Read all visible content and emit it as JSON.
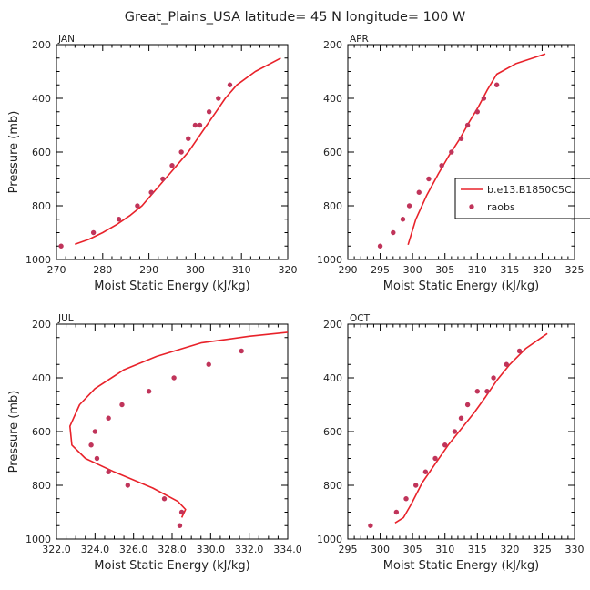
{
  "title": "Great_Plains_USA  latitude= 45 N longitude= 100 W",
  "colors": {
    "model": "#e8222a",
    "obs": "#c0345a",
    "axis": "#000000"
  },
  "legend": {
    "model_label": "b.e13.B1850C5C",
    "obs_label": "raobs"
  },
  "chart_data": [
    {
      "id": "jan",
      "type": "line",
      "month": "JAN",
      "xlabel": "Moist Static Energy (kJ/kg)",
      "ylabel": "Pressure (mb)",
      "xlim": [
        270,
        320
      ],
      "ylim": [
        1000,
        200
      ],
      "xticks": [
        270,
        280,
        290,
        300,
        310,
        320
      ],
      "xtick_labels": [
        "270",
        "280",
        "290",
        "300",
        "310",
        "320"
      ],
      "xminor": 2,
      "yticks": [
        200,
        400,
        600,
        800,
        1000
      ],
      "yminor": 50,
      "series": [
        {
          "name": "b.e13.B1850C5C",
          "kind": "line",
          "x": [
            274,
            277,
            280,
            283,
            286,
            288.5,
            290.5,
            292.5,
            294.5,
            296.5,
            298.5,
            300.5,
            302.5,
            304.5,
            306.5,
            309,
            313,
            318.5
          ],
          "y": [
            943,
            925,
            900,
            870,
            835,
            800,
            760,
            720,
            680,
            640,
            600,
            550,
            500,
            450,
            400,
            350,
            300,
            250
          ]
        },
        {
          "name": "raobs",
          "kind": "points",
          "x": [
            271,
            278,
            283.5,
            287.5,
            290.5,
            293,
            295,
            297,
            298.5,
            300,
            301,
            303,
            305,
            307.5
          ],
          "y": [
            950,
            900,
            850,
            800,
            750,
            700,
            650,
            600,
            550,
            500,
            500,
            450,
            400,
            350
          ]
        }
      ]
    },
    {
      "id": "apr",
      "type": "line",
      "month": "APR",
      "xlabel": "Moist Static Energy (kJ/kg)",
      "ylabel": "",
      "xlim": [
        290,
        325
      ],
      "ylim": [
        1000,
        200
      ],
      "xticks": [
        290,
        295,
        300,
        305,
        310,
        315,
        320,
        325
      ],
      "xtick_labels": [
        "290",
        "295",
        "300",
        "305",
        "310",
        "315",
        "320",
        "325"
      ],
      "xminor": 1,
      "yticks": [
        200,
        400,
        600,
        800,
        1000
      ],
      "yminor": 50,
      "show_legend": true,
      "series": [
        {
          "name": "b.e13.B1850C5C",
          "kind": "line",
          "x": [
            299.3,
            300.5,
            302.2,
            304,
            305.7,
            307.3,
            308.7,
            310.2,
            311.5,
            313,
            316,
            320.5
          ],
          "y": [
            945,
            850,
            760,
            680,
            610,
            550,
            490,
            430,
            370,
            310,
            270,
            235
          ]
        },
        {
          "name": "raobs",
          "kind": "points",
          "x": [
            295,
            297,
            298.5,
            299.5,
            301,
            302.5,
            304.5,
            306,
            307.5,
            308.5,
            310,
            311,
            313
          ],
          "y": [
            950,
            900,
            850,
            800,
            750,
            700,
            650,
            600,
            550,
            500,
            450,
            400,
            350
          ]
        }
      ]
    },
    {
      "id": "jul",
      "type": "line",
      "month": "JUL",
      "xlabel": "Moist Static Energy (kJ/kg)",
      "ylabel": "Pressure (mb)",
      "xlim": [
        322,
        334
      ],
      "ylim": [
        1000,
        200
      ],
      "xticks": [
        322,
        324,
        326,
        328,
        330,
        332,
        334
      ],
      "xtick_labels": [
        "322.0",
        "324.0",
        "326.0",
        "328.0",
        "330.0",
        "332.0",
        "334.0"
      ],
      "xminor": 0.5,
      "yticks": [
        200,
        400,
        600,
        800,
        1000
      ],
      "yminor": 50,
      "series": [
        {
          "name": "b.e13.B1850C5C",
          "kind": "line",
          "x": [
            328.5,
            328.7,
            328.3,
            327,
            325,
            323.5,
            322.8,
            322.7,
            323.2,
            324,
            325.5,
            327.2,
            329.5,
            332,
            334
          ],
          "y": [
            920,
            890,
            860,
            810,
            750,
            700,
            650,
            580,
            500,
            440,
            370,
            320,
            270,
            245,
            230
          ]
        },
        {
          "name": "raobs",
          "kind": "points",
          "x": [
            328.4,
            328.5,
            327.6,
            325.7,
            324.7,
            324.1,
            323.8,
            324,
            324.7,
            325.4,
            326.8,
            328.1,
            329.9,
            331.6
          ],
          "y": [
            950,
            900,
            850,
            800,
            750,
            700,
            650,
            600,
            550,
            500,
            450,
            400,
            350,
            300
          ]
        }
      ]
    },
    {
      "id": "oct",
      "type": "line",
      "month": "OCT",
      "xlabel": "Moist Static Energy (kJ/kg)",
      "ylabel": "",
      "xlim": [
        295,
        330
      ],
      "ylim": [
        1000,
        200
      ],
      "xticks": [
        295,
        300,
        305,
        310,
        315,
        320,
        325,
        330
      ],
      "xtick_labels": [
        "295",
        "300",
        "305",
        "310",
        "315",
        "320",
        "325",
        "330"
      ],
      "xminor": 1,
      "yticks": [
        200,
        400,
        600,
        800,
        1000
      ],
      "yminor": 50,
      "series": [
        {
          "name": "b.e13.B1850C5C",
          "kind": "line",
          "x": [
            302.3,
            303.6,
            304.8,
            306.5,
            308.5,
            310.5,
            312.5,
            314.5,
            316.3,
            318,
            320,
            322.5,
            325.8
          ],
          "y": [
            940,
            920,
            870,
            790,
            720,
            650,
            590,
            530,
            470,
            410,
            350,
            290,
            235
          ]
        },
        {
          "name": "raobs",
          "kind": "points",
          "x": [
            298.5,
            302.5,
            304,
            305.5,
            307,
            308.5,
            310,
            311.5,
            312.5,
            313.5,
            315,
            316.5,
            317.5,
            319.5,
            321.5
          ],
          "y": [
            950,
            900,
            850,
            800,
            750,
            700,
            650,
            600,
            550,
            500,
            450,
            450,
            400,
            350,
            300
          ]
        }
      ]
    }
  ]
}
